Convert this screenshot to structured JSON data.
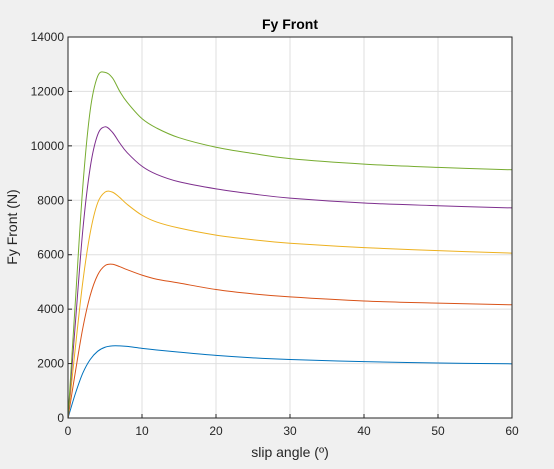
{
  "chart_data": {
    "type": "line",
    "title": "Fy Front",
    "xlabel": "slip angle (º)",
    "ylabel": "Fy Front (N)",
    "xlim": [
      0,
      60
    ],
    "ylim": [
      0,
      14000
    ],
    "xticks": [
      0,
      10,
      20,
      30,
      40,
      50,
      60
    ],
    "yticks": [
      0,
      2000,
      4000,
      6000,
      8000,
      10000,
      12000,
      14000
    ],
    "grid": true,
    "legend": "none",
    "x": [
      0,
      1,
      2,
      3,
      4,
      5,
      6,
      7,
      8,
      10,
      12,
      15,
      20,
      25,
      30,
      40,
      50,
      60
    ],
    "series": [
      {
        "color": "#0072bd",
        "values": [
          0,
          900,
          1650,
          2150,
          2450,
          2600,
          2650,
          2650,
          2630,
          2560,
          2500,
          2420,
          2300,
          2210,
          2150,
          2070,
          2020,
          1990
        ]
      },
      {
        "color": "#d95319",
        "values": [
          0,
          1700,
          3300,
          4500,
          5250,
          5600,
          5650,
          5560,
          5450,
          5250,
          5100,
          4960,
          4720,
          4560,
          4450,
          4300,
          4220,
          4160
        ]
      },
      {
        "color": "#edb120",
        "values": [
          0,
          2600,
          5000,
          6800,
          7900,
          8300,
          8300,
          8100,
          7850,
          7450,
          7200,
          6980,
          6720,
          6550,
          6420,
          6260,
          6150,
          6060
        ]
      },
      {
        "color": "#7e2f8e",
        "values": [
          0,
          3500,
          6900,
          9200,
          10400,
          10700,
          10500,
          10100,
          9750,
          9250,
          8950,
          8680,
          8420,
          8230,
          8080,
          7900,
          7800,
          7720
        ]
      },
      {
        "color": "#77ac30",
        "values": [
          0,
          4300,
          8500,
          11300,
          12550,
          12700,
          12500,
          12000,
          11600,
          11000,
          10650,
          10300,
          9950,
          9720,
          9530,
          9330,
          9210,
          9120
        ]
      }
    ]
  }
}
